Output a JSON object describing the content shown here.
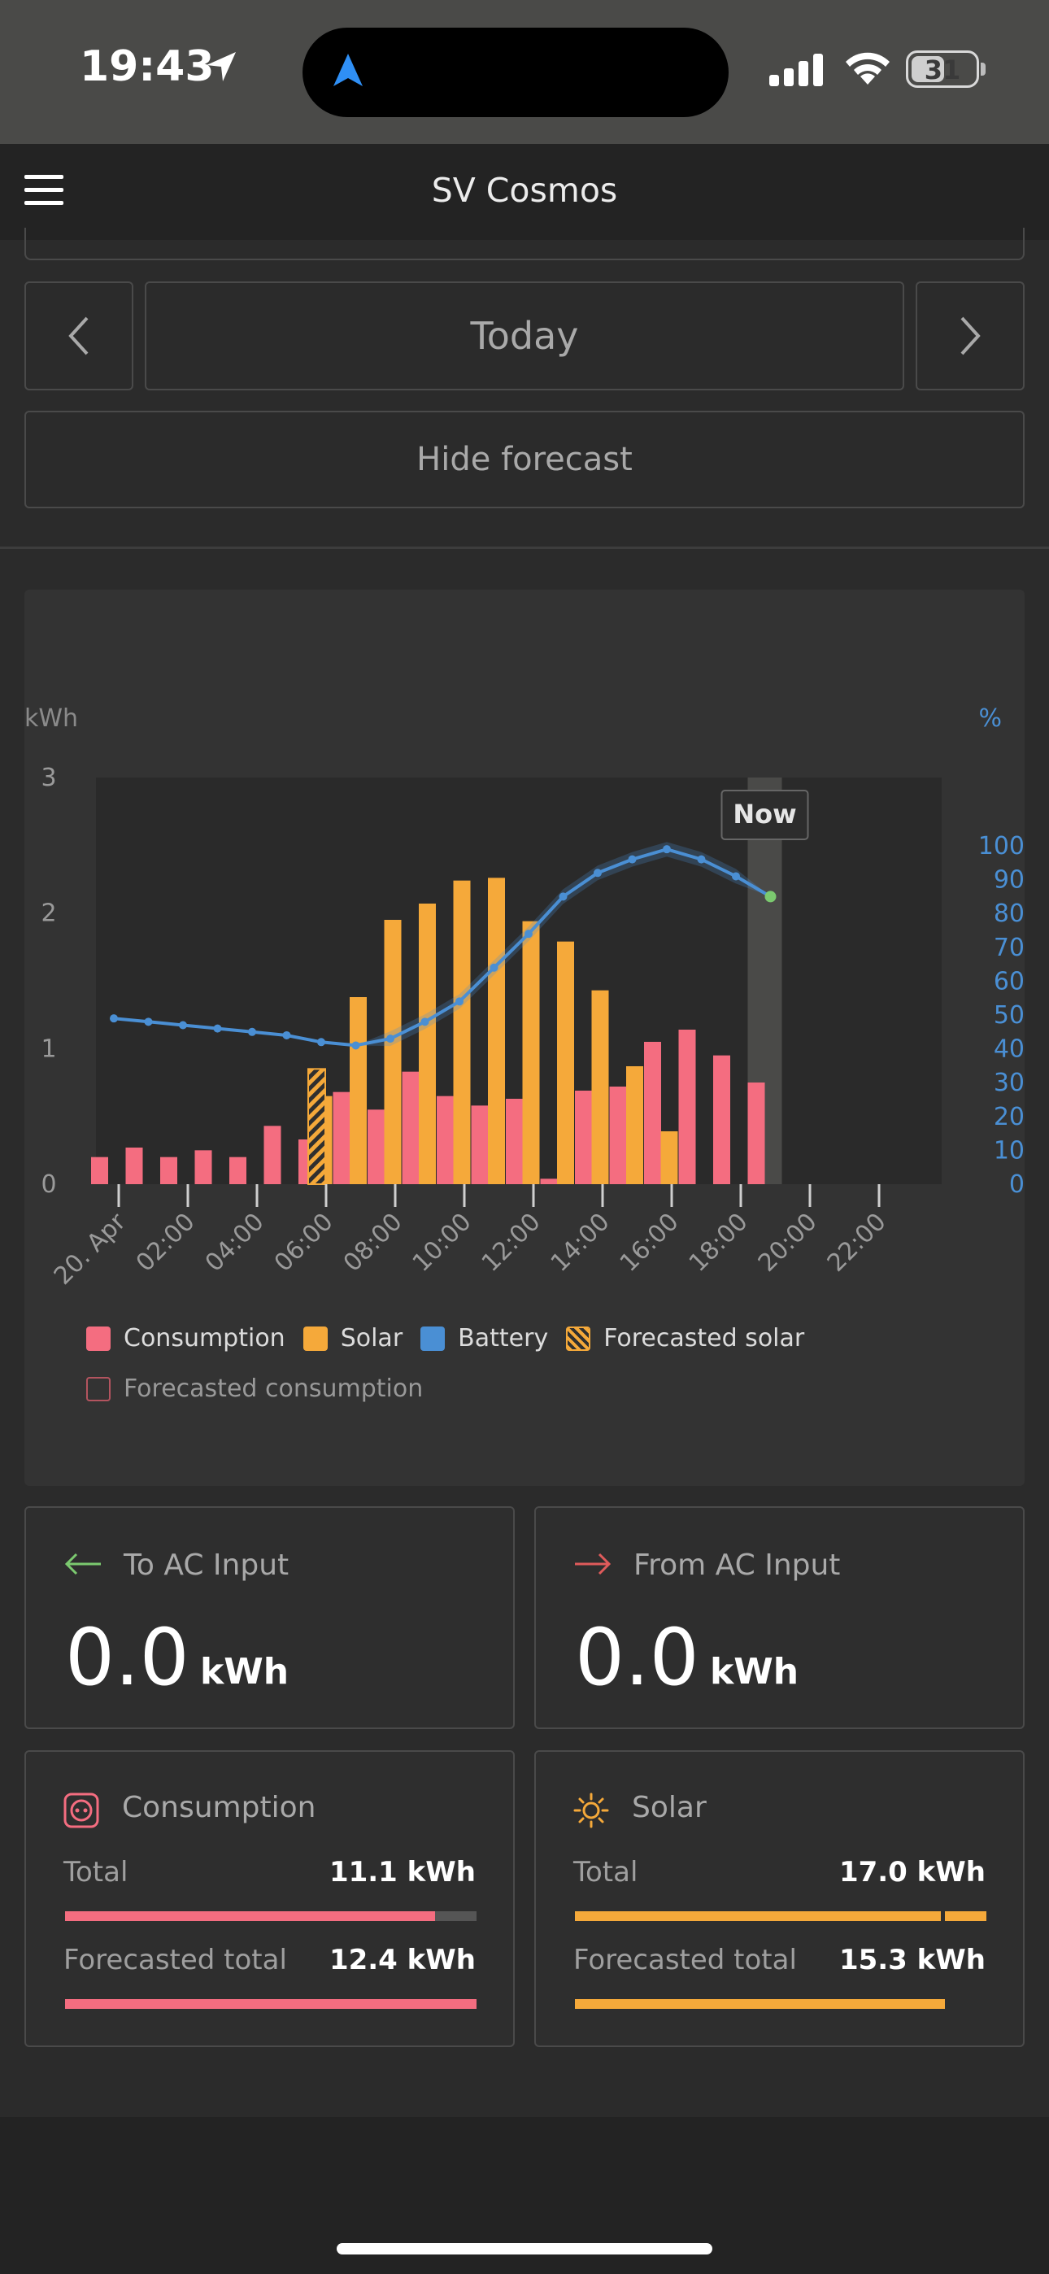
{
  "status_bar": {
    "time": "19:43",
    "battery": "31"
  },
  "header": {
    "title": "SV Cosmos"
  },
  "nav": {
    "prev_icon": "chevron-left-icon",
    "date_label": "Today",
    "next_icon": "chevron-right-icon",
    "forecast_toggle": "Hide forecast"
  },
  "colors": {
    "consumption": "#f46d80",
    "solar": "#f5a93a",
    "battery": "#4a8fd4",
    "to_ac": "#7bc96f",
    "from_ac": "#e05b5b"
  },
  "chart_data": {
    "type": "bar",
    "left_axis_label": "kWh",
    "right_axis_label": "%",
    "left_ticks": [
      "3",
      "2",
      "1",
      "0"
    ],
    "right_ticks": [
      "100",
      "90",
      "80",
      "70",
      "60",
      "50",
      "40",
      "30",
      "20",
      "10",
      "0"
    ],
    "ylim_kwh": [
      0,
      3
    ],
    "ylim_pct": [
      0,
      100
    ],
    "x_ticks": [
      "20. Apr",
      "02:00",
      "04:00",
      "06:00",
      "08:00",
      "10:00",
      "12:00",
      "14:00",
      "16:00",
      "18:00",
      "20:00",
      "22:00"
    ],
    "now_label": "Now",
    "now_hour": 19,
    "consumption_hours": [
      0,
      1,
      2,
      3,
      4,
      5,
      6,
      7,
      8,
      9,
      10,
      11,
      12,
      13,
      14,
      15,
      16,
      17,
      18,
      19
    ],
    "consumption": [
      0.2,
      0.27,
      0.2,
      0.25,
      0.2,
      0.43,
      0.33,
      0.68,
      0.55,
      0.83,
      0.65,
      0.58,
      0.63,
      0.04,
      0.69,
      0.72,
      1.05,
      1.14,
      0.95,
      0.75
    ],
    "solar_hours": [
      7,
      8,
      9,
      10,
      11,
      12,
      13,
      14,
      15,
      16,
      17
    ],
    "solar": [
      0.65,
      1.38,
      1.95,
      2.07,
      2.24,
      2.26,
      1.94,
      1.79,
      1.43,
      0.87,
      0.39
    ],
    "forecasted_solar": [
      {
        "hour": 6,
        "value": 0.85
      }
    ],
    "battery_soc": [
      {
        "h": 0,
        "v": 49
      },
      {
        "h": 1,
        "v": 48
      },
      {
        "h": 2,
        "v": 47
      },
      {
        "h": 3,
        "v": 46
      },
      {
        "h": 4,
        "v": 45
      },
      {
        "h": 5,
        "v": 44
      },
      {
        "h": 6,
        "v": 42
      },
      {
        "h": 7,
        "v": 41
      },
      {
        "h": 8,
        "v": 43
      },
      {
        "h": 9,
        "v": 48
      },
      {
        "h": 10,
        "v": 54
      },
      {
        "h": 11,
        "v": 64
      },
      {
        "h": 12,
        "v": 74
      },
      {
        "h": 13,
        "v": 85
      },
      {
        "h": 14,
        "v": 92
      },
      {
        "h": 15,
        "v": 96
      },
      {
        "h": 16,
        "v": 99
      },
      {
        "h": 17,
        "v": 96
      },
      {
        "h": 18,
        "v": 91
      },
      {
        "h": 19,
        "v": 85
      }
    ],
    "legend": [
      "Consumption",
      "Solar",
      "Battery",
      "Forecasted solar",
      "Forecasted consumption"
    ]
  },
  "to_ac": {
    "icon": "arrow-left-icon",
    "title": "To AC Input",
    "value": "0.0",
    "unit": "kWh"
  },
  "from_ac": {
    "icon": "arrow-right-icon",
    "title": "From AC Input",
    "value": "0.0",
    "unit": "kWh"
  },
  "consumption_card": {
    "icon": "socket-icon",
    "title": "Consumption",
    "total_label": "Total",
    "total_value": "11.1 kWh",
    "forecast_label": "Forecasted total",
    "forecast_value": "12.4 kWh",
    "total_fraction": 0.9,
    "forecast_fraction": 1.0
  },
  "solar_card": {
    "icon": "sun-icon",
    "title": "Solar",
    "total_label": "Total",
    "total_value": "17.0 kWh",
    "forecast_label": "Forecasted total",
    "forecast_value": "15.3 kWh",
    "total_fraction": 1.0,
    "forecast_fraction": 0.9
  }
}
